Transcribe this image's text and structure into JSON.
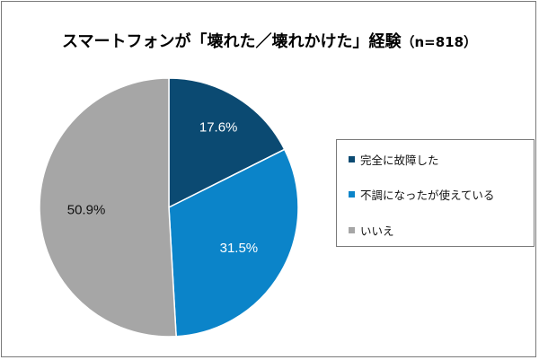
{
  "chart_data": {
    "type": "pie",
    "title": "スマートフォンが「壊れた／壊れかけた」経験",
    "title_n": "（n=818）",
    "slices": [
      {
        "name": "完全に故障した",
        "value": 17.6,
        "label": "17.6%",
        "color": "#0b4a72"
      },
      {
        "name": "不調になったが使えている",
        "value": 31.5,
        "label": "31.5%",
        "color": "#0b84c9"
      },
      {
        "name": "いいえ",
        "value": 50.9,
        "label": "50.9%",
        "color": "#a6a6a6"
      }
    ],
    "legend_position": "right",
    "start_angle": "12 o'clock, clockwise"
  }
}
